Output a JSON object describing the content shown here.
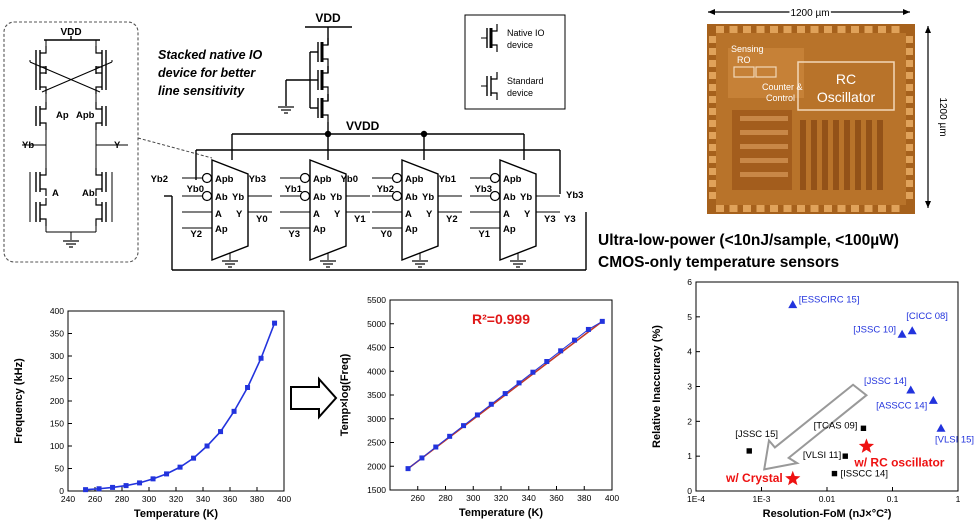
{
  "schematic": {
    "vdd_main": "VDD",
    "vdd_cell": "VDD",
    "vvdd": "VVDD",
    "stacked_note": [
      "Stacked native IO",
      "device for better",
      "line sensitivity"
    ],
    "legend": {
      "native": [
        "Native IO",
        "device"
      ],
      "standard": [
        "Standard",
        "device"
      ]
    },
    "cell_nodes": {
      "ap": "Ap",
      "apb": "Apb",
      "yb": "Yb",
      "y": "Y",
      "a": "A",
      "ab": "Ab"
    },
    "stages": [
      {
        "in_apb": "Yb2",
        "in_abyb": "Yb0",
        "in_a": "",
        "in_ap": "Y2",
        "out_y": "Y0"
      },
      {
        "in_apb": "Yb3",
        "in_abyb": "Yb1",
        "in_a": "",
        "in_ap": "Y3",
        "out_y": "Y1"
      },
      {
        "in_apb": "Yb0",
        "in_abyb": "Yb2",
        "in_a": "",
        "in_ap": "Y0",
        "out_y": "Y2"
      },
      {
        "in_apb": "Yb1",
        "in_abyb": "Yb3",
        "in_a": "",
        "in_ap": "Y1",
        "out_y": "Y3"
      }
    ],
    "pin_labels": {
      "apb": "Apb",
      "ab": "Ab",
      "yb": "Yb",
      "a": "A",
      "y": "Y",
      "ap": "Ap"
    }
  },
  "chip": {
    "width_label": "1200 µm",
    "height_label": "1200 µm",
    "sensing_ro": [
      "Sensing",
      "RO"
    ],
    "counter": [
      "Counter &",
      "Control"
    ],
    "rc_osc": [
      "RC",
      "Oscillator"
    ]
  },
  "heading": [
    "Ultra-low-power (<10nJ/sample, <100µW)",
    "CMOS-only temperature sensors"
  ],
  "chart_data": [
    {
      "type": "line",
      "xlabel": "Temperature (K)",
      "ylabel": "Frequency (kHz)",
      "xlim": [
        240,
        400
      ],
      "ylim": [
        0,
        400
      ],
      "xticks": [
        240,
        260,
        280,
        300,
        320,
        340,
        360,
        380,
        400
      ],
      "yticks": [
        0,
        50,
        100,
        150,
        200,
        250,
        300,
        350,
        400
      ],
      "x": [
        253,
        263,
        273,
        283,
        293,
        303,
        313,
        323,
        333,
        343,
        353,
        363,
        373,
        383,
        393
      ],
      "y": [
        3,
        5,
        8,
        12,
        18,
        27,
        38,
        53,
        73,
        100,
        132,
        177,
        230,
        295,
        373
      ],
      "color": "#2233dd"
    },
    {
      "type": "line",
      "xlabel": "Temperature (K)",
      "ylabel": "Temp×log(Freq)",
      "annotation": "R²=0.999",
      "annotation_color": "#e01818",
      "xlim": [
        240,
        400
      ],
      "ylim": [
        1500,
        5500
      ],
      "xticks": [
        260,
        280,
        300,
        320,
        340,
        360,
        380,
        400
      ],
      "yticks": [
        1500,
        2000,
        2500,
        3000,
        3500,
        4000,
        4500,
        5000,
        5500
      ],
      "x": [
        253,
        263,
        273,
        283,
        293,
        303,
        313,
        323,
        333,
        343,
        353,
        363,
        373,
        383,
        393
      ],
      "y": [
        1950,
        2175,
        2405,
        2630,
        2855,
        3080,
        3305,
        3530,
        3755,
        3980,
        4205,
        4430,
        4655,
        4880,
        5050
      ],
      "color": "#2233dd",
      "fit_color": "#c0392b"
    },
    {
      "type": "scatter",
      "xlabel": "Resolution-FoM (nJ×°C²)",
      "ylabel": "Relative Inaccuracy (%)",
      "xscale": "log",
      "xlim": [
        0.0001,
        1
      ],
      "ylim": [
        0,
        6
      ],
      "xticks": [
        "1E-4",
        "1E-3",
        "0.01",
        "0.1",
        "1"
      ],
      "yticks": [
        0,
        1,
        2,
        3,
        4,
        5,
        6
      ],
      "points": [
        {
          "label": "[ESSCIRC 15]",
          "x": 0.003,
          "y": 5.35,
          "marker": "triangle",
          "color": "#2233dd"
        },
        {
          "label": "[CICC 08]",
          "x": 0.2,
          "y": 4.6,
          "marker": "triangle",
          "color": "#2233dd"
        },
        {
          "label": "[JSSC 10]",
          "x": 0.14,
          "y": 4.5,
          "marker": "triangle",
          "color": "#2233dd"
        },
        {
          "label": "[JSSC 14]",
          "x": 0.19,
          "y": 2.9,
          "marker": "triangle",
          "color": "#2233dd"
        },
        {
          "label": "[ASSCC 14]",
          "x": 0.42,
          "y": 2.6,
          "marker": "triangle",
          "color": "#2233dd"
        },
        {
          "label": "[VLSI 15]",
          "x": 0.55,
          "y": 1.8,
          "marker": "triangle",
          "color": "#2233dd"
        },
        {
          "label": "[TCAS 09]",
          "x": 0.036,
          "y": 1.8,
          "marker": "square",
          "color": "#000000"
        },
        {
          "label": "[JSSC 15]",
          "x": 0.00065,
          "y": 1.15,
          "marker": "square",
          "color": "#000000"
        },
        {
          "label": "[VLSI 11]",
          "x": 0.019,
          "y": 1.0,
          "marker": "square",
          "color": "#000000"
        },
        {
          "label": "[ISSCC 14]",
          "x": 0.013,
          "y": 0.5,
          "marker": "square",
          "color": "#000000"
        },
        {
          "label": "w/ RC oscillator",
          "x": 0.04,
          "y": 1.28,
          "marker": "star",
          "color": "#ee1111"
        },
        {
          "label": "w/ Crystal",
          "x": 0.003,
          "y": 0.35,
          "marker": "star",
          "color": "#ee1111"
        }
      ]
    }
  ]
}
